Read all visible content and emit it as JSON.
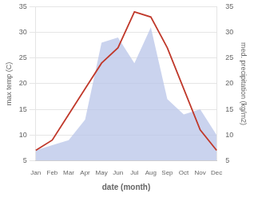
{
  "chart_data": {
    "type": "line",
    "categories": [
      "Jan",
      "Feb",
      "Mar",
      "Apr",
      "May",
      "Jun",
      "Jul",
      "Aug",
      "Sep",
      "Oct",
      "Nov",
      "Dec"
    ],
    "series": [
      {
        "type": "line",
        "color": "#c0392b",
        "values": [
          7,
          9,
          14,
          19,
          24,
          27,
          34,
          33,
          27,
          19,
          11,
          7
        ]
      },
      {
        "type": "area",
        "color": "#b8c4e8",
        "axis": "y2",
        "values": [
          7,
          8,
          9,
          13,
          28,
          29,
          24,
          31,
          17,
          14,
          15,
          10
        ]
      }
    ],
    "xlabel": "date (month)",
    "ylabel": "max temp (C)",
    "y2label": "med. precipitation (kg/m2)",
    "ylim": [
      5,
      35
    ],
    "yticks": [
      5,
      10,
      15,
      20,
      25,
      30,
      35
    ],
    "y2lim": [
      5,
      35
    ],
    "y2ticks": [
      5,
      10,
      15,
      20,
      25,
      30,
      35
    ],
    "grid": true
  }
}
